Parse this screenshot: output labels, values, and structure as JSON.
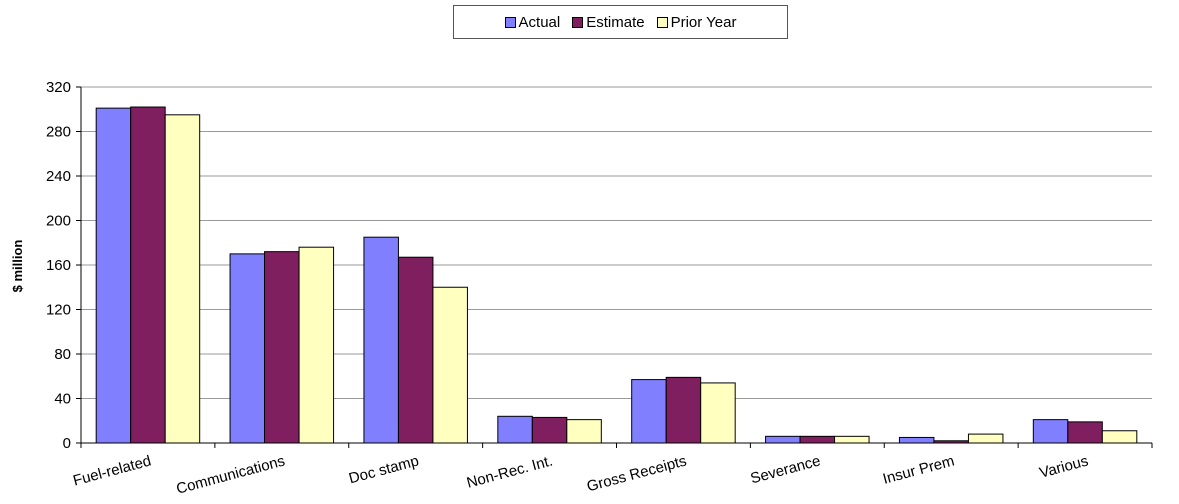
{
  "chart_data": {
    "type": "bar",
    "title": "",
    "xlabel": "",
    "ylabel": "$ million",
    "ylim": [
      0,
      320
    ],
    "yticks": [
      0,
      40,
      80,
      120,
      160,
      200,
      240,
      280,
      320
    ],
    "grid": true,
    "legend_position": "top-center",
    "categories": [
      "Fuel-related",
      "Communications",
      "Doc stamp",
      "Non-Rec. Int.",
      "Gross Receipts",
      "Severance",
      "Insur Prem",
      "Various"
    ],
    "series": [
      {
        "name": "Actual",
        "color": "#8080ff",
        "values": [
          301,
          170,
          185,
          24,
          57,
          6,
          5,
          21
        ]
      },
      {
        "name": "Estimate",
        "color": "#7f1f5f",
        "values": [
          302,
          172,
          167,
          23,
          59,
          6,
          2,
          19
        ]
      },
      {
        "name": "Prior Year",
        "color": "#ffffc0",
        "values": [
          295,
          176,
          140,
          21,
          54,
          6,
          8,
          11
        ]
      }
    ]
  }
}
